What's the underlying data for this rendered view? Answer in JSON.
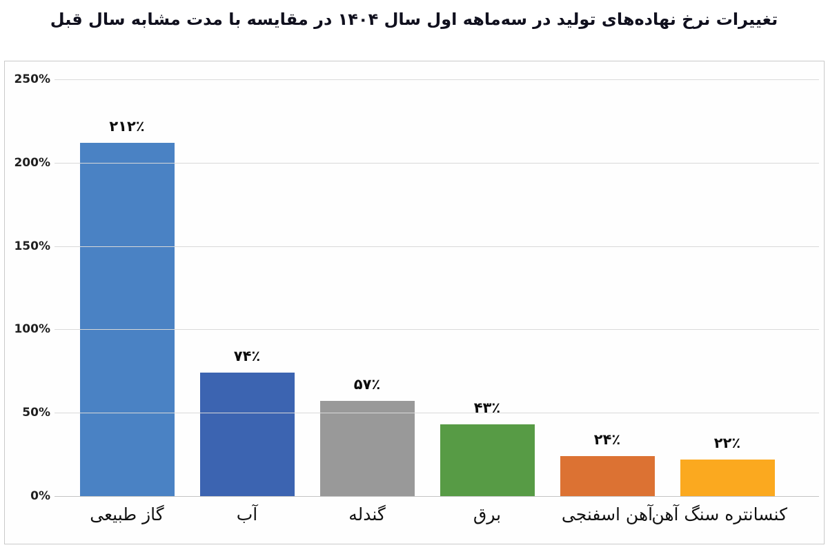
{
  "title": "تغییرات نرخ نهاده‌های تولید در سه‌ماهه اول سال ۱۴۰۴ در مقایسه با مدت مشابه سال قبل",
  "chart_data": {
    "type": "bar",
    "title": "تغییرات نرخ نهاده‌های تولید در سه‌ماهه اول سال ۱۴۰۴ در مقایسه با مدت مشابه سال قبل",
    "categories": [
      "گاز طبیعی",
      "آب",
      "گندله",
      "برق",
      "آهن اسفنجی",
      "کنسانتره سنگ آهن"
    ],
    "category_keys": [
      "natural-gas",
      "water",
      "pellet",
      "electricity",
      "sponge-iron",
      "iron-ore-concentrate"
    ],
    "values": [
      212,
      74,
      57,
      43,
      24,
      22
    ],
    "value_labels": [
      "۲۱۲٪",
      "۷۴٪",
      "۵۷٪",
      "۴۳٪",
      "۲۴٪",
      "۲۲٪"
    ],
    "bar_colors": [
      "#4a82c4",
      "#3c64b1",
      "#999999",
      "#579b45",
      "#dc7233",
      "#fba91f"
    ],
    "xlabel": "",
    "ylabel": "",
    "ylim": [
      0,
      250
    ],
    "yticks": [
      0,
      50,
      100,
      150,
      200,
      250
    ],
    "ytick_labels": [
      "0%",
      "50%",
      "100%",
      "150%",
      "200%",
      "250%"
    ],
    "grid": true,
    "legend_position": "none",
    "grid_color": "#d9d9d9",
    "axis_color": "#c4c4c4",
    "title_color": "#10101e",
    "value_label_color": "#0c0c0c"
  }
}
